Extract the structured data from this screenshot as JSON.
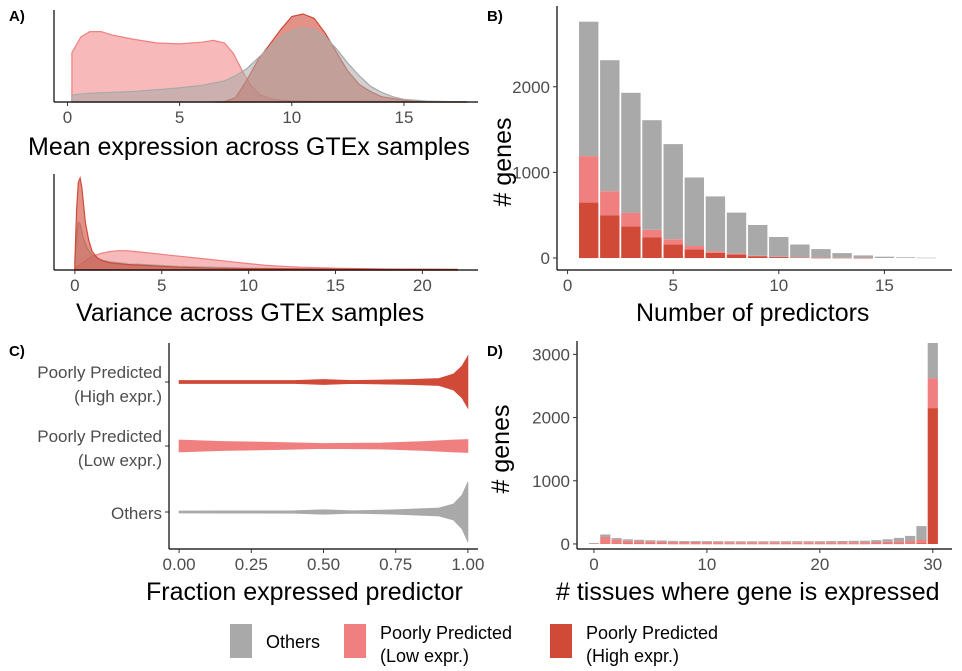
{
  "colors": {
    "others": "#A9A9A9",
    "poorly_low": "#F08080",
    "poorly_high": "#D04A37"
  },
  "legend": {
    "items": [
      {
        "key": "others",
        "line1": "Others",
        "line2": "",
        "color": "#A9A9A9"
      },
      {
        "key": "poorly_low",
        "line1": "Poorly Predicted",
        "line2": "(Low expr.)",
        "color": "#F08080"
      },
      {
        "key": "poorly_high",
        "line1": "Poorly Predicted",
        "line2": "(High expr.)",
        "color": "#D04A37"
      }
    ]
  },
  "chart_data": [
    {
      "panel": "A)",
      "type": "area",
      "subtype": "density",
      "xlabel": "Mean expression across GTEx samples",
      "xticks": [
        0,
        5,
        10,
        15
      ],
      "xlim": [
        -0.6,
        18.3
      ],
      "series": [
        {
          "key": "poorly_low",
          "opacity": 0.55,
          "x": [
            0.2,
            0.6,
            1.0,
            1.5,
            2.0,
            3.0,
            4.0,
            5.0,
            6.0,
            6.5,
            7.0,
            7.4,
            7.8,
            8.2,
            8.6,
            9.0,
            9.5,
            10.0,
            11.0,
            12.0,
            13.0,
            14.0,
            15.0,
            16.0,
            17.8
          ],
          "y": [
            0.56,
            0.74,
            0.8,
            0.8,
            0.76,
            0.71,
            0.67,
            0.66,
            0.68,
            0.7,
            0.67,
            0.55,
            0.35,
            0.18,
            0.08,
            0.04,
            0.02,
            0.015,
            0.01,
            0.01,
            0.01,
            0.008,
            0.006,
            0.004,
            0.002
          ]
        },
        {
          "key": "poorly_high",
          "opacity": 0.6,
          "x": [
            6.5,
            7.0,
            7.5,
            8.0,
            8.5,
            9.0,
            9.5,
            10.0,
            10.5,
            11.0,
            11.5,
            12.0,
            12.5,
            13.0,
            13.5,
            14.0,
            15.0,
            16.0,
            17.8
          ],
          "y": [
            0.0,
            0.005,
            0.05,
            0.25,
            0.48,
            0.65,
            0.82,
            0.97,
            1.0,
            0.95,
            0.78,
            0.56,
            0.35,
            0.2,
            0.12,
            0.06,
            0.02,
            0.005,
            0.0
          ]
        },
        {
          "key": "others",
          "opacity": 0.55,
          "x": [
            0.2,
            1.0,
            2.0,
            3.0,
            4.0,
            5.0,
            6.0,
            7.0,
            7.5,
            8.0,
            8.5,
            9.0,
            9.5,
            10.0,
            10.5,
            11.0,
            11.5,
            12.0,
            12.5,
            13.0,
            13.5,
            14.0,
            14.5,
            15.0,
            16.0,
            17.0,
            17.8
          ],
          "y": [
            0.08,
            0.1,
            0.11,
            0.12,
            0.14,
            0.16,
            0.19,
            0.24,
            0.3,
            0.38,
            0.5,
            0.62,
            0.74,
            0.81,
            0.84,
            0.82,
            0.74,
            0.6,
            0.44,
            0.3,
            0.18,
            0.11,
            0.06,
            0.03,
            0.01,
            0.005,
            0.0
          ]
        }
      ]
    },
    {
      "panel": "A)",
      "type": "area",
      "subtype": "density",
      "xlabel": "Variance across GTEx samples",
      "xticks": [
        0,
        5,
        10,
        15,
        20
      ],
      "xlim": [
        -1.2,
        23.2
      ],
      "series": [
        {
          "key": "poorly_low",
          "opacity": 0.55,
          "x": [
            0.0,
            0.3,
            0.7,
            1.0,
            1.5,
            2.0,
            2.5,
            3.0,
            3.5,
            4.0,
            5.0,
            6.0,
            7.0,
            8.0,
            9.0,
            10.0,
            11.0,
            12.0,
            13.0,
            15.0,
            18.0,
            22.0
          ],
          "y": [
            0.02,
            0.06,
            0.11,
            0.15,
            0.18,
            0.2,
            0.21,
            0.21,
            0.2,
            0.19,
            0.17,
            0.15,
            0.13,
            0.11,
            0.09,
            0.07,
            0.05,
            0.04,
            0.03,
            0.02,
            0.01,
            0.005
          ]
        },
        {
          "key": "others",
          "opacity": 0.55,
          "x": [
            0.0,
            0.1,
            0.2,
            0.3,
            0.4,
            0.5,
            0.7,
            1.0,
            1.5,
            2.0,
            3.0,
            4.0,
            6.0,
            8.0,
            10.0,
            12.0,
            15.0,
            22.0
          ],
          "y": [
            0.1,
            0.35,
            0.52,
            0.5,
            0.42,
            0.34,
            0.24,
            0.16,
            0.11,
            0.09,
            0.07,
            0.06,
            0.04,
            0.03,
            0.02,
            0.015,
            0.01,
            0.005
          ]
        },
        {
          "key": "poorly_high",
          "opacity": 0.6,
          "x": [
            0.0,
            0.1,
            0.2,
            0.3,
            0.4,
            0.5,
            0.6,
            0.8,
            1.0,
            1.3,
            1.6,
            2.0,
            2.5,
            3.0,
            4.0,
            5.0,
            6.0,
            8.0,
            10.0,
            15.0,
            22.0
          ],
          "y": [
            0.1,
            0.65,
            0.95,
            1.0,
            0.9,
            0.72,
            0.52,
            0.32,
            0.2,
            0.13,
            0.1,
            0.08,
            0.07,
            0.06,
            0.05,
            0.04,
            0.03,
            0.02,
            0.015,
            0.01,
            0.005
          ]
        }
      ]
    },
    {
      "panel": "B)",
      "type": "bar",
      "stacked": true,
      "xlabel": "Number of predictors",
      "ylabel": "# genes",
      "xticks": [
        0,
        5,
        10,
        15
      ],
      "yticks": [
        0,
        1000,
        2000
      ],
      "xlim": [
        -0.5,
        18.2
      ],
      "ylim": [
        -140,
        2920
      ],
      "x": [
        1,
        2,
        3,
        4,
        5,
        6,
        7,
        8,
        9,
        10,
        11,
        12,
        13,
        14,
        15,
        16,
        17
      ],
      "series": [
        {
          "key": "poorly_high",
          "values": [
            650,
            500,
            370,
            240,
            160,
            100,
            60,
            40,
            20,
            12,
            6,
            3,
            2,
            1,
            0,
            0,
            0
          ]
        },
        {
          "key": "poorly_low",
          "values": [
            540,
            280,
            160,
            90,
            60,
            40,
            20,
            10,
            5,
            3,
            2,
            1,
            0,
            0,
            0,
            0,
            0
          ]
        },
        {
          "key": "others",
          "values": [
            1570,
            1530,
            1400,
            1280,
            1110,
            800,
            640,
            480,
            360,
            230,
            150,
            100,
            55,
            30,
            15,
            8,
            4
          ]
        }
      ]
    },
    {
      "panel": "C)",
      "type": "violin",
      "xlabel": "Fraction expressed predictor",
      "xticks": [
        "0.00",
        "0.25",
        "0.50",
        "0.75",
        "1.00"
      ],
      "xlim": [
        -0.035,
        1.035
      ],
      "categories": [
        {
          "key": "poorly_high",
          "line1": "Poorly Predicted",
          "line2": "(High expr.)",
          "half_width": [
            [
              0.0,
              1.5
            ],
            [
              0.4,
              1.5
            ],
            [
              0.5,
              2.5
            ],
            [
              0.6,
              1.5
            ],
            [
              0.8,
              2.5
            ],
            [
              0.9,
              3.5
            ],
            [
              0.95,
              8
            ],
            [
              0.98,
              16
            ],
            [
              1.0,
              26
            ]
          ]
        },
        {
          "key": "poorly_low",
          "line1": "Poorly Predicted",
          "line2": "(Low expr.)",
          "half_width": [
            [
              0.0,
              6
            ],
            [
              0.15,
              4.5
            ],
            [
              0.35,
              3.5
            ],
            [
              0.5,
              2.5
            ],
            [
              0.7,
              3
            ],
            [
              0.85,
              4.5
            ],
            [
              0.95,
              6
            ],
            [
              1.0,
              6.5
            ]
          ]
        },
        {
          "key": "others",
          "line1": "Others",
          "line2": "",
          "half_width": [
            [
              0.0,
              1
            ],
            [
              0.4,
              1.2
            ],
            [
              0.5,
              2.2
            ],
            [
              0.6,
              1.2
            ],
            [
              0.75,
              2.2
            ],
            [
              0.9,
              4
            ],
            [
              0.95,
              8
            ],
            [
              0.98,
              17
            ],
            [
              1.0,
              30
            ]
          ]
        }
      ]
    },
    {
      "panel": "D)",
      "type": "bar",
      "stacked": true,
      "xlabel": "# tissues where gene is expressed",
      "ylabel": "# genes",
      "xticks": [
        0,
        10,
        20,
        30
      ],
      "yticks": [
        0,
        1000,
        2000,
        3000
      ],
      "xlim": [
        -1.5,
        31.7
      ],
      "ylim": [
        -80,
        3180
      ],
      "x": [
        0,
        1,
        2,
        3,
        4,
        5,
        6,
        7,
        8,
        9,
        10,
        11,
        12,
        13,
        14,
        15,
        16,
        17,
        18,
        19,
        20,
        21,
        22,
        23,
        24,
        25,
        26,
        27,
        28,
        29,
        30
      ],
      "series": [
        {
          "key": "poorly_high",
          "values": [
            0,
            10,
            8,
            6,
            5,
            5,
            5,
            4,
            4,
            4,
            4,
            4,
            4,
            4,
            4,
            4,
            4,
            4,
            4,
            4,
            4,
            4,
            4,
            4,
            4,
            5,
            5,
            6,
            8,
            12,
            2150
          ]
        },
        {
          "key": "poorly_low",
          "values": [
            10,
            100,
            60,
            45,
            40,
            35,
            32,
            30,
            28,
            27,
            26,
            25,
            24,
            24,
            24,
            24,
            24,
            24,
            24,
            24,
            24,
            24,
            25,
            25,
            25,
            28,
            30,
            35,
            40,
            50,
            470
          ]
        },
        {
          "key": "others",
          "values": [
            5,
            40,
            25,
            22,
            20,
            18,
            17,
            16,
            15,
            15,
            14,
            14,
            14,
            14,
            14,
            14,
            15,
            15,
            15,
            15,
            16,
            17,
            18,
            20,
            22,
            28,
            38,
            55,
            80,
            220,
            560
          ]
        }
      ]
    }
  ]
}
